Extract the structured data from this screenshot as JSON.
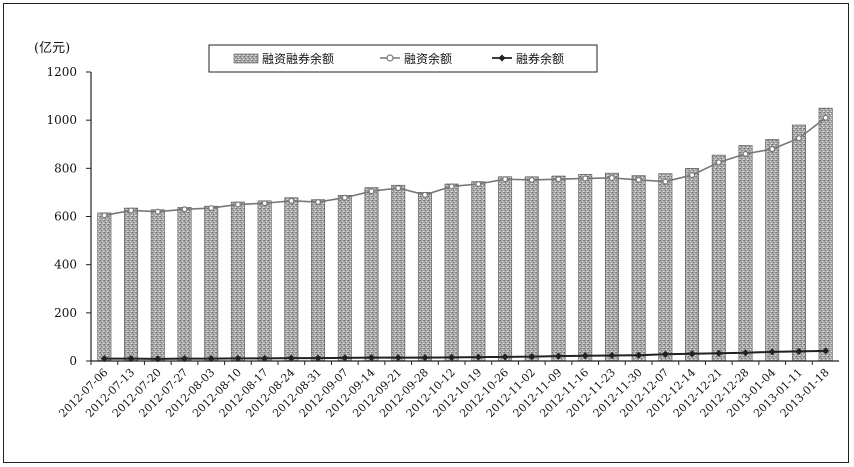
{
  "chart_data": {
    "type": "bar",
    "unit_label": "(亿元)",
    "ylim": [
      0,
      1200
    ],
    "yticks": [
      0,
      200,
      400,
      600,
      800,
      1000,
      1200
    ],
    "grid": false,
    "legend_position": "top-center",
    "categories": [
      "2012-07-06",
      "2012-07-13",
      "2012-07-20",
      "2012-07-27",
      "2012-08-03",
      "2012-08-10",
      "2012-08-17",
      "2012-08-24",
      "2012-08-31",
      "2012-09-07",
      "2012-09-14",
      "2012-09-21",
      "2012-09-28",
      "2012-10-12",
      "2012-10-19",
      "2012-10-26",
      "2012-11-02",
      "2012-11-09",
      "2012-11-16",
      "2012-11-23",
      "2012-11-30",
      "2012-12-07",
      "2012-12-14",
      "2012-12-21",
      "2012-12-28",
      "2013-01-04",
      "2013-01-11",
      "2013-01-18"
    ],
    "series": [
      {
        "name": "融资融券余额",
        "kind": "bar",
        "color": "#9a9a9a",
        "values": [
          615,
          635,
          628,
          638,
          643,
          660,
          665,
          678,
          670,
          688,
          720,
          730,
          700,
          735,
          745,
          765,
          765,
          768,
          775,
          780,
          770,
          778,
          800,
          855,
          895,
          920,
          980,
          1050
        ]
      },
      {
        "name": "融资余额",
        "kind": "line",
        "marker": "circle",
        "color": "#777777",
        "values": [
          605,
          625,
          620,
          630,
          635,
          650,
          655,
          665,
          660,
          678,
          705,
          718,
          690,
          725,
          735,
          755,
          752,
          755,
          758,
          760,
          752,
          745,
          772,
          825,
          860,
          880,
          925,
          1010
        ]
      },
      {
        "name": "融券余额",
        "kind": "line",
        "marker": "diamond",
        "color": "#222222",
        "values": [
          10,
          10,
          9,
          10,
          10,
          11,
          11,
          12,
          12,
          13,
          14,
          14,
          14,
          15,
          16,
          17,
          18,
          20,
          22,
          23,
          24,
          28,
          30,
          32,
          34,
          38,
          40,
          42
        ]
      }
    ]
  }
}
